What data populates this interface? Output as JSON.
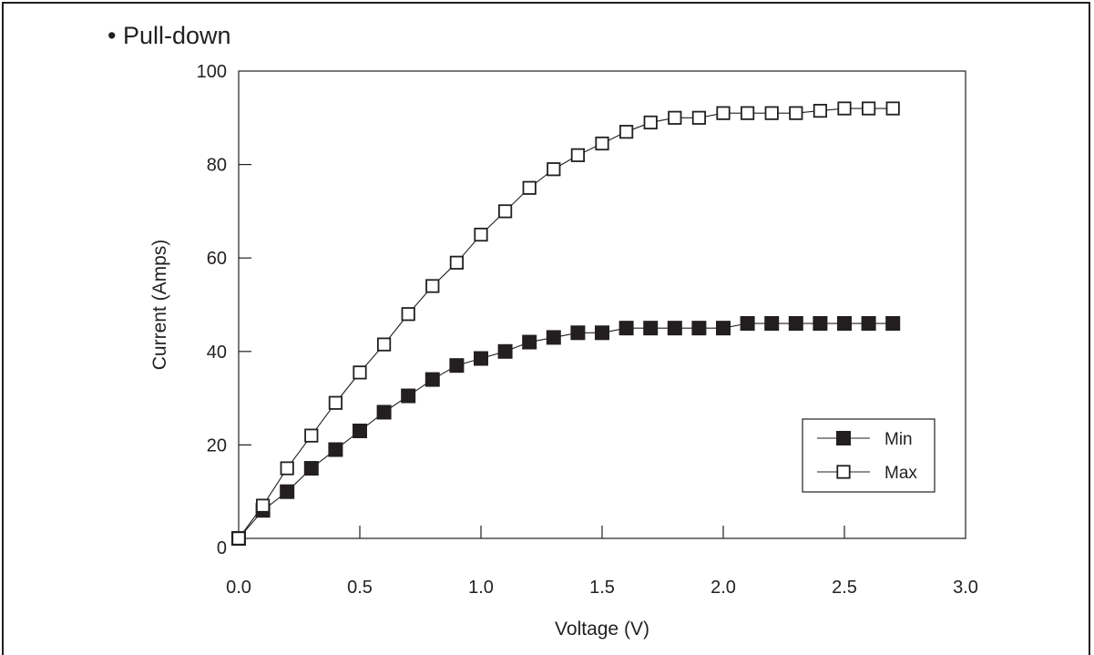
{
  "chart_data": {
    "type": "line",
    "title": "• Pull-down",
    "xlabel": "Voltage  (V)",
    "ylabel": "Current  (Amps)",
    "xlim": [
      0,
      3
    ],
    "ylim": [
      0,
      100
    ],
    "xticks": [
      "0.0",
      "0.5",
      "1.0",
      "1.5",
      "2.0",
      "2.5",
      "3.0"
    ],
    "yticks": [
      "0",
      "20",
      "40",
      "60",
      "80",
      "100"
    ],
    "grid": false,
    "legend_position": "bottom-right",
    "x": [
      0.0,
      0.1,
      0.2,
      0.3,
      0.4,
      0.5,
      0.6,
      0.7,
      0.8,
      0.9,
      1.0,
      1.1,
      1.2,
      1.3,
      1.4,
      1.5,
      1.6,
      1.7,
      1.8,
      1.9,
      2.0,
      2.1,
      2.2,
      2.3,
      2.4,
      2.5,
      2.6,
      2.7
    ],
    "series": [
      {
        "name": "Min",
        "marker": "filled-square",
        "values": [
          0,
          6,
          10,
          15,
          19,
          23,
          27,
          30.5,
          34,
          37,
          38.5,
          40,
          42,
          43,
          44,
          44,
          45,
          45,
          45,
          45,
          45,
          46,
          46,
          46,
          46,
          46,
          46,
          46
        ]
      },
      {
        "name": "Max",
        "marker": "open-square",
        "values": [
          0,
          7,
          15,
          22,
          29,
          35.5,
          41.5,
          48,
          54,
          59,
          65,
          70,
          75,
          79,
          82,
          84.5,
          87,
          89,
          90,
          90,
          91,
          91,
          91,
          91,
          91.5,
          92,
          92,
          92
        ]
      }
    ]
  },
  "colors": {
    "ink": "#231f20",
    "background": "#ffffff"
  }
}
